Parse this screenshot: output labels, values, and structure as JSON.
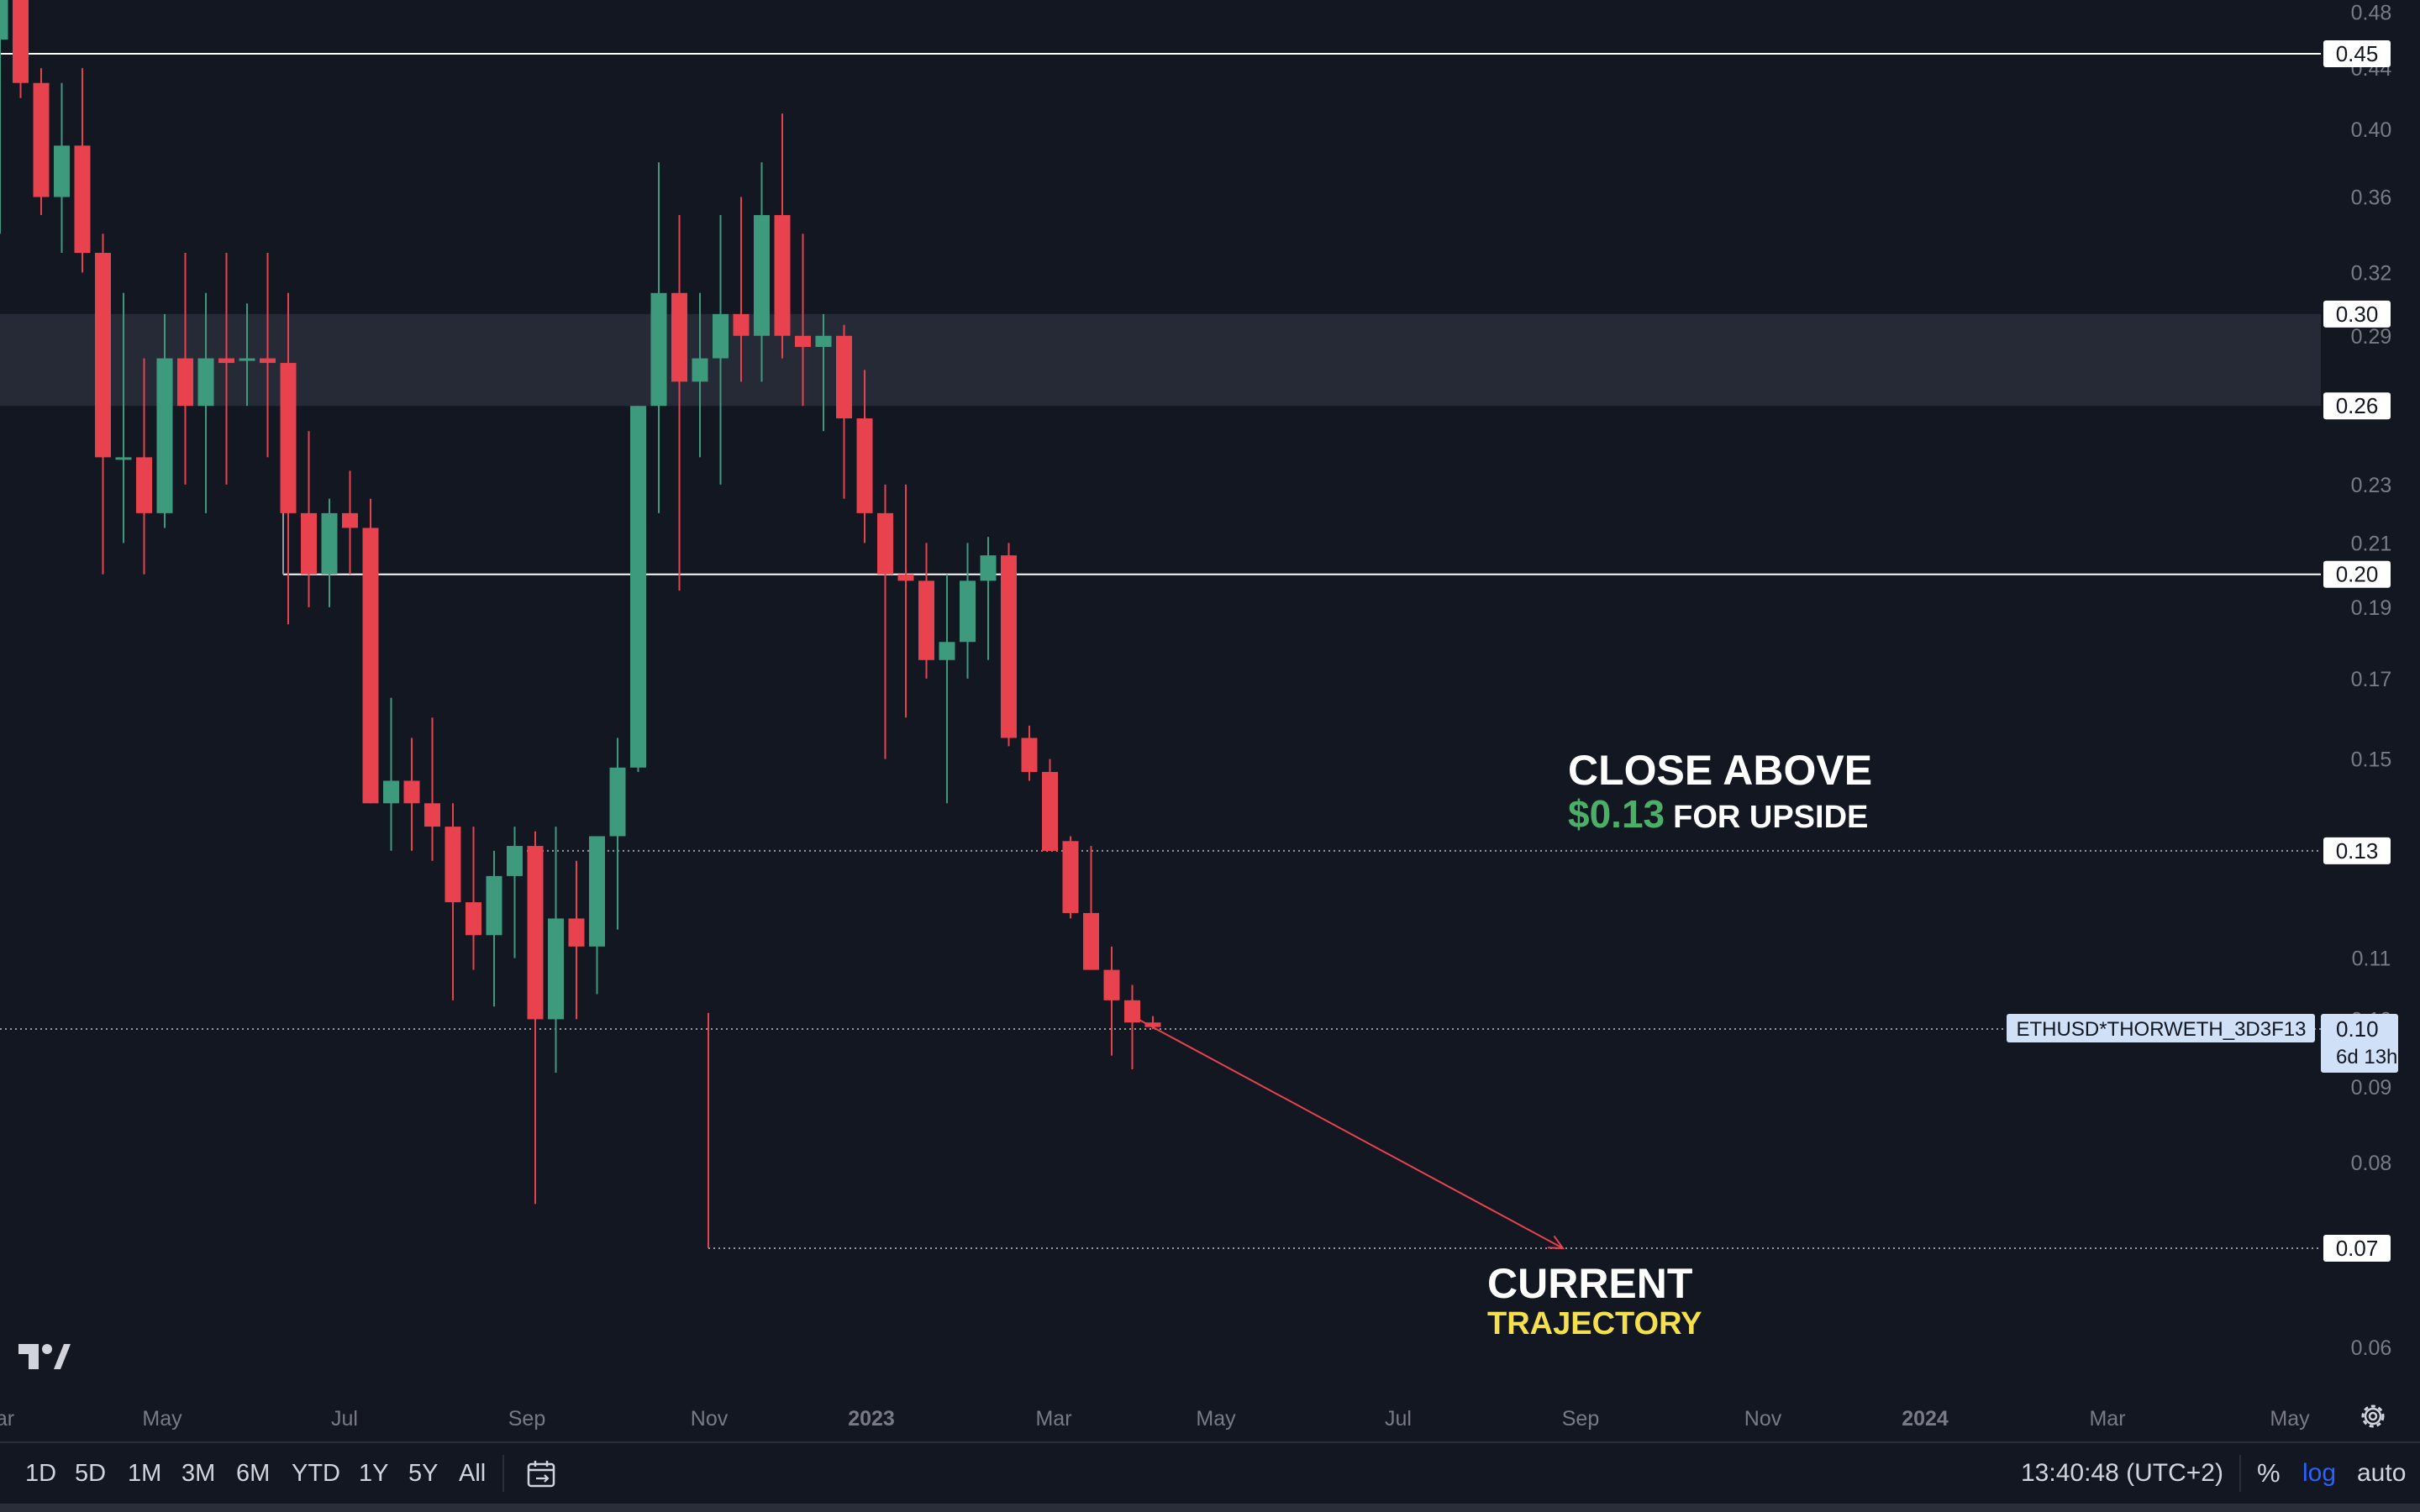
{
  "chart_data": {
    "type": "candlestick",
    "scale": "log",
    "y_ticks": [
      "0.48",
      "0.44",
      "0.40",
      "0.36",
      "0.32",
      "0.29",
      "0.23",
      "0.21",
      "0.19",
      "0.17",
      "0.15",
      "0.11",
      "0.10",
      "0.09",
      "0.08",
      "0.07",
      "0.06"
    ],
    "x_ticks": [
      {
        "label": "ar",
        "bold": false
      },
      {
        "label": "May",
        "bold": false
      },
      {
        "label": "Jul",
        "bold": false
      },
      {
        "label": "Sep",
        "bold": false
      },
      {
        "label": "Nov",
        "bold": false
      },
      {
        "label": "2023",
        "bold": true
      },
      {
        "label": "Mar",
        "bold": false
      },
      {
        "label": "May",
        "bold": false
      },
      {
        "label": "Jul",
        "bold": false
      },
      {
        "label": "Sep",
        "bold": false
      },
      {
        "label": "Nov",
        "bold": false
      },
      {
        "label": "2024",
        "bold": true
      },
      {
        "label": "Mar",
        "bold": false
      },
      {
        "label": "May",
        "bold": false
      }
    ],
    "candles": [
      {
        "o": 0.46,
        "h": 0.52,
        "l": 0.34,
        "c": 0.52
      },
      {
        "o": 0.5,
        "h": 0.5,
        "l": 0.42,
        "c": 0.43
      },
      {
        "o": 0.43,
        "h": 0.44,
        "l": 0.35,
        "c": 0.36
      },
      {
        "o": 0.36,
        "h": 0.43,
        "l": 0.33,
        "c": 0.39
      },
      {
        "o": 0.39,
        "h": 0.44,
        "l": 0.32,
        "c": 0.33
      },
      {
        "o": 0.33,
        "h": 0.34,
        "l": 0.2,
        "c": 0.24
      },
      {
        "o": 0.24,
        "h": 0.31,
        "l": 0.21,
        "c": 0.24
      },
      {
        "o": 0.24,
        "h": 0.28,
        "l": 0.2,
        "c": 0.22
      },
      {
        "o": 0.22,
        "h": 0.3,
        "l": 0.215,
        "c": 0.28
      },
      {
        "o": 0.28,
        "h": 0.33,
        "l": 0.23,
        "c": 0.26
      },
      {
        "o": 0.26,
        "h": 0.31,
        "l": 0.22,
        "c": 0.28
      },
      {
        "o": 0.28,
        "h": 0.33,
        "l": 0.23,
        "c": 0.278
      },
      {
        "o": 0.28,
        "h": 0.305,
        "l": 0.26,
        "c": 0.28
      },
      {
        "o": 0.28,
        "h": 0.33,
        "l": 0.24,
        "c": 0.278
      },
      {
        "o": 0.278,
        "h": 0.31,
        "l": 0.185,
        "c": 0.22
      },
      {
        "o": 0.22,
        "h": 0.25,
        "l": 0.19,
        "c": 0.2
      },
      {
        "o": 0.2,
        "h": 0.225,
        "l": 0.19,
        "c": 0.22
      },
      {
        "o": 0.22,
        "h": 0.235,
        "l": 0.2,
        "c": 0.215
      },
      {
        "o": 0.215,
        "h": 0.225,
        "l": 0.14,
        "c": 0.14
      },
      {
        "o": 0.14,
        "h": 0.165,
        "l": 0.13,
        "c": 0.145
      },
      {
        "o": 0.145,
        "h": 0.155,
        "l": 0.13,
        "c": 0.14
      },
      {
        "o": 0.14,
        "h": 0.16,
        "l": 0.128,
        "c": 0.135
      },
      {
        "o": 0.135,
        "h": 0.14,
        "l": 0.103,
        "c": 0.12
      },
      {
        "o": 0.12,
        "h": 0.135,
        "l": 0.108,
        "c": 0.114
      },
      {
        "o": 0.114,
        "h": 0.13,
        "l": 0.102,
        "c": 0.125
      },
      {
        "o": 0.125,
        "h": 0.135,
        "l": 0.11,
        "c": 0.131
      },
      {
        "o": 0.131,
        "h": 0.134,
        "l": 0.075,
        "c": 0.1
      },
      {
        "o": 0.1,
        "h": 0.135,
        "l": 0.092,
        "c": 0.117
      },
      {
        "o": 0.117,
        "h": 0.128,
        "l": 0.1,
        "c": 0.112
      },
      {
        "o": 0.112,
        "h": 0.13,
        "l": 0.104,
        "c": 0.133
      },
      {
        "o": 0.133,
        "h": 0.155,
        "l": 0.115,
        "c": 0.148
      },
      {
        "o": 0.148,
        "h": 0.26,
        "l": 0.147,
        "c": 0.26
      },
      {
        "o": 0.26,
        "h": 0.38,
        "l": 0.22,
        "c": 0.31
      },
      {
        "o": 0.31,
        "h": 0.35,
        "l": 0.195,
        "c": 0.27
      },
      {
        "o": 0.27,
        "h": 0.31,
        "l": 0.24,
        "c": 0.28
      },
      {
        "o": 0.28,
        "h": 0.35,
        "l": 0.23,
        "c": 0.3
      },
      {
        "o": 0.3,
        "h": 0.36,
        "l": 0.27,
        "c": 0.29
      },
      {
        "o": 0.29,
        "h": 0.38,
        "l": 0.27,
        "c": 0.35
      },
      {
        "o": 0.35,
        "h": 0.41,
        "l": 0.28,
        "c": 0.29
      },
      {
        "o": 0.29,
        "h": 0.34,
        "l": 0.26,
        "c": 0.285
      },
      {
        "o": 0.285,
        "h": 0.3,
        "l": 0.25,
        "c": 0.29
      },
      {
        "o": 0.29,
        "h": 0.295,
        "l": 0.225,
        "c": 0.255
      },
      {
        "o": 0.255,
        "h": 0.275,
        "l": 0.21,
        "c": 0.22
      },
      {
        "o": 0.22,
        "h": 0.23,
        "l": 0.15,
        "c": 0.2
      },
      {
        "o": 0.2,
        "h": 0.23,
        "l": 0.16,
        "c": 0.198
      },
      {
        "o": 0.198,
        "h": 0.21,
        "l": 0.17,
        "c": 0.175
      },
      {
        "o": 0.175,
        "h": 0.2,
        "l": 0.14,
        "c": 0.18
      },
      {
        "o": 0.18,
        "h": 0.21,
        "l": 0.17,
        "c": 0.198
      },
      {
        "o": 0.198,
        "h": 0.212,
        "l": 0.175,
        "c": 0.206
      },
      {
        "o": 0.206,
        "h": 0.21,
        "l": 0.153,
        "c": 0.155
      },
      {
        "o": 0.155,
        "h": 0.158,
        "l": 0.145,
        "c": 0.147
      },
      {
        "o": 0.147,
        "h": 0.15,
        "l": 0.13,
        "c": 0.13
      },
      {
        "o": 0.132,
        "h": 0.133,
        "l": 0.117,
        "c": 0.118
      },
      {
        "o": 0.118,
        "h": 0.131,
        "l": 0.108,
        "c": 0.108
      },
      {
        "o": 0.108,
        "h": 0.112,
        "l": 0.0945,
        "c": 0.103
      },
      {
        "o": 0.103,
        "h": 0.1055,
        "l": 0.0925,
        "c": 0.0995
      },
      {
        "o": 0.0995,
        "h": 0.1005,
        "l": 0.0985,
        "c": 0.0988
      }
    ],
    "levels": [
      {
        "value": 0.45,
        "label": "0.45",
        "style": "solid"
      },
      {
        "value": 0.2,
        "label": "0.20",
        "style": "solid"
      },
      {
        "value": 0.13,
        "label": "0.13",
        "style": "dotted"
      },
      {
        "value": 0.07,
        "label": "0.07",
        "style": "dotted"
      }
    ],
    "zone": {
      "from": 0.26,
      "to": 0.3,
      "labels": [
        "0.30",
        "0.26"
      ]
    },
    "current_price": {
      "value": 0.0985,
      "label": "0.10",
      "countdown": "6d 13h",
      "symbol": "ETHUSD*THORWETH_3D3F13"
    },
    "trajectory_target": 0.07,
    "colors": {
      "up": "#3d9a7d",
      "down": "#e8424e",
      "background": "#131722",
      "zone": "#2a2e39",
      "line": "#ffffff",
      "arrow": "#e8424e"
    }
  },
  "annotations": {
    "close_above": {
      "line1": "CLOSE ABOVE",
      "price": "$0.13",
      "rest": "FOR UPSIDE"
    },
    "trajectory": {
      "line1": "CURRENT",
      "line2": "TRAJECTORY"
    }
  },
  "toolbar": {
    "timeframes": [
      "1D",
      "5D",
      "1M",
      "3M",
      "6M",
      "YTD",
      "1Y",
      "5Y",
      "All"
    ],
    "clock": "13:40:48 (UTC+2)",
    "percent": "%",
    "log": "log",
    "auto": "auto"
  },
  "icons": {
    "logo": "tradingview-logo",
    "calendar": "calendar-range-icon",
    "settings": "gear-icon"
  }
}
